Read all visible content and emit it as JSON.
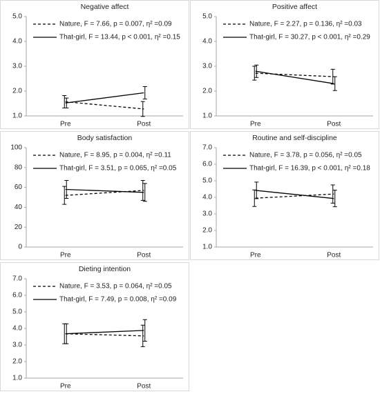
{
  "chart_data": [
    {
      "type": "line",
      "title": "Negative affect",
      "categories": [
        "Pre",
        "Post"
      ],
      "ylim": [
        1,
        5
      ],
      "yticks": [
        {
          "value": 1,
          "label": "1.0"
        },
        {
          "value": 2,
          "label": "2.0"
        },
        {
          "value": 3,
          "label": "3.0"
        },
        {
          "value": 4,
          "label": "4.0"
        },
        {
          "value": 5,
          "label": "5.0"
        }
      ],
      "series": [
        {
          "name": "Nature, F = 7.66, p = 0.007, η² =0.09",
          "color": "#000000",
          "dash": true,
          "values": [
            1.57,
            1.28
          ],
          "errors": [
            0.25,
            0.3
          ]
        },
        {
          "name": "That-girl, F = 13.44, p < 0.001, η² =0.15",
          "color": "#000000",
          "dash": false,
          "values": [
            1.52,
            1.93
          ],
          "errors": [
            0.2,
            0.25
          ]
        }
      ]
    },
    {
      "type": "line",
      "title": "Positive affect",
      "categories": [
        "Pre",
        "Post"
      ],
      "ylim": [
        1,
        5
      ],
      "yticks": [
        {
          "value": 1,
          "label": "1.0"
        },
        {
          "value": 2,
          "label": "2.0"
        },
        {
          "value": 3,
          "label": "3.0"
        },
        {
          "value": 4,
          "label": "4.0"
        },
        {
          "value": 5,
          "label": "5.0"
        }
      ],
      "series": [
        {
          "name": "Nature, F = 2.27, p = 0.136, η² =0.03",
          "color": "#000000",
          "dash": true,
          "values": [
            2.72,
            2.58
          ],
          "errors": [
            0.28,
            0.3
          ]
        },
        {
          "name": "That-girl, F = 30.27, p < 0.001, η² =0.29",
          "color": "#000000",
          "dash": false,
          "values": [
            2.8,
            2.3
          ],
          "errors": [
            0.25,
            0.28
          ]
        }
      ]
    },
    {
      "type": "line",
      "title": "Body satisfaction",
      "categories": [
        "Pre",
        "Post"
      ],
      "ylim": [
        0,
        100
      ],
      "yticks": [
        0,
        20,
        40,
        60,
        80,
        100
      ],
      "series": [
        {
          "name": "Nature, F = 8.95, p = 0.004, η² =0.11",
          "color": "#000000",
          "dash": true,
          "values": [
            52,
            57
          ],
          "errors": [
            9,
            10
          ]
        },
        {
          "name": "That-girl, F = 3.51, p = 0.065, η² =0.05",
          "color": "#000000",
          "dash": false,
          "values": [
            58,
            55
          ],
          "errors": [
            9,
            9
          ]
        }
      ]
    },
    {
      "type": "line",
      "title": "Routine and self-discipline",
      "categories": [
        "Pre",
        "Post"
      ],
      "ylim": [
        1,
        7
      ],
      "yticks": [
        {
          "value": 1,
          "label": "1.0"
        },
        {
          "value": 2,
          "label": "2.0"
        },
        {
          "value": 3,
          "label": "3.0"
        },
        {
          "value": 4,
          "label": "4.0"
        },
        {
          "value": 5,
          "label": "5.0"
        },
        {
          "value": 6,
          "label": "6.0"
        },
        {
          "value": 7,
          "label": "7.0"
        }
      ],
      "series": [
        {
          "name": "Nature, F = 3.78, p = 0.056, η² =0.05",
          "color": "#000000",
          "dash": true,
          "values": [
            3.95,
            4.2
          ],
          "errors": [
            0.5,
            0.55
          ]
        },
        {
          "name": "That-girl, F = 16.39, p < 0.001, η² =0.18",
          "color": "#000000",
          "dash": false,
          "values": [
            4.42,
            3.93
          ],
          "errors": [
            0.5,
            0.5
          ]
        }
      ]
    },
    {
      "type": "line",
      "title": "Dieting intention",
      "categories": [
        "Pre",
        "Post"
      ],
      "ylim": [
        1,
        7
      ],
      "yticks": [
        {
          "value": 1,
          "label": "1.0"
        },
        {
          "value": 2,
          "label": "2.0"
        },
        {
          "value": 3,
          "label": "3.0"
        },
        {
          "value": 4,
          "label": "4.0"
        },
        {
          "value": 5,
          "label": "5.0"
        },
        {
          "value": 6,
          "label": "6.0"
        },
        {
          "value": 7,
          "label": "7.0"
        }
      ],
      "series": [
        {
          "name": "Nature, F = 3.53, p = 0.064, η² =0.05",
          "color": "#000000",
          "dash": true,
          "values": [
            3.68,
            3.55
          ],
          "errors": [
            0.6,
            0.65
          ]
        },
        {
          "name": "That-girl, F = 7.49, p = 0.008, η² =0.09",
          "color": "#000000",
          "dash": false,
          "values": [
            3.68,
            3.88
          ],
          "errors": [
            0.6,
            0.65
          ]
        }
      ]
    }
  ]
}
